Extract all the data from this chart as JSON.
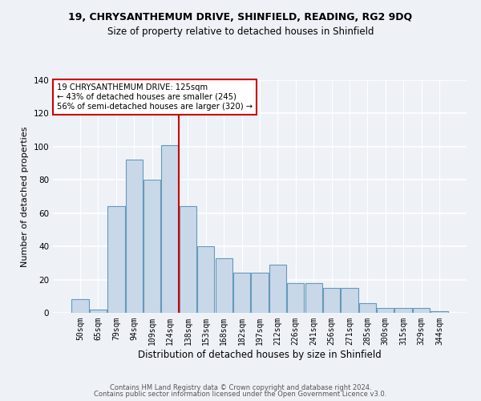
{
  "title1": "19, CHRYSANTHEMUM DRIVE, SHINFIELD, READING, RG2 9DQ",
  "title2": "Size of property relative to detached houses in Shinfield",
  "xlabel": "Distribution of detached houses by size in Shinfield",
  "ylabel": "Number of detached properties",
  "bar_labels": [
    "50sqm",
    "65sqm",
    "79sqm",
    "94sqm",
    "109sqm",
    "124sqm",
    "138sqm",
    "153sqm",
    "168sqm",
    "182sqm",
    "197sqm",
    "212sqm",
    "226sqm",
    "241sqm",
    "256sqm",
    "271sqm",
    "285sqm",
    "300sqm",
    "315sqm",
    "329sqm",
    "344sqm"
  ],
  "bar_values": [
    8,
    2,
    64,
    92,
    80,
    101,
    64,
    40,
    33,
    24,
    24,
    29,
    18,
    18,
    15,
    15,
    6,
    3,
    3,
    3,
    1
  ],
  "bar_color": "#c8d8e8",
  "bar_edge_color": "#6699bb",
  "property_line_x": 5.5,
  "annotation_text": "19 CHRYSANTHEMUM DRIVE: 125sqm\n← 43% of detached houses are smaller (245)\n56% of semi-detached houses are larger (320) →",
  "ylim": [
    0,
    140
  ],
  "yticks": [
    0,
    20,
    40,
    60,
    80,
    100,
    120,
    140
  ],
  "footer1": "Contains HM Land Registry data © Crown copyright and database right 2024.",
  "footer2": "Contains public sector information licensed under the Open Government Licence v3.0.",
  "bg_color": "#eef2f7",
  "grid_color": "#ffffff",
  "annotation_box_color": "#ffffff",
  "annotation_box_edge": "#cc0000",
  "vline_color": "#cc0000",
  "title1_fontsize": 9.0,
  "title2_fontsize": 8.5,
  "ylabel_fontsize": 8.0,
  "xlabel_fontsize": 8.5,
  "annotation_fontsize": 7.2,
  "tick_fontsize": 7.0,
  "ytick_fontsize": 7.5,
  "footer_fontsize": 6.0
}
